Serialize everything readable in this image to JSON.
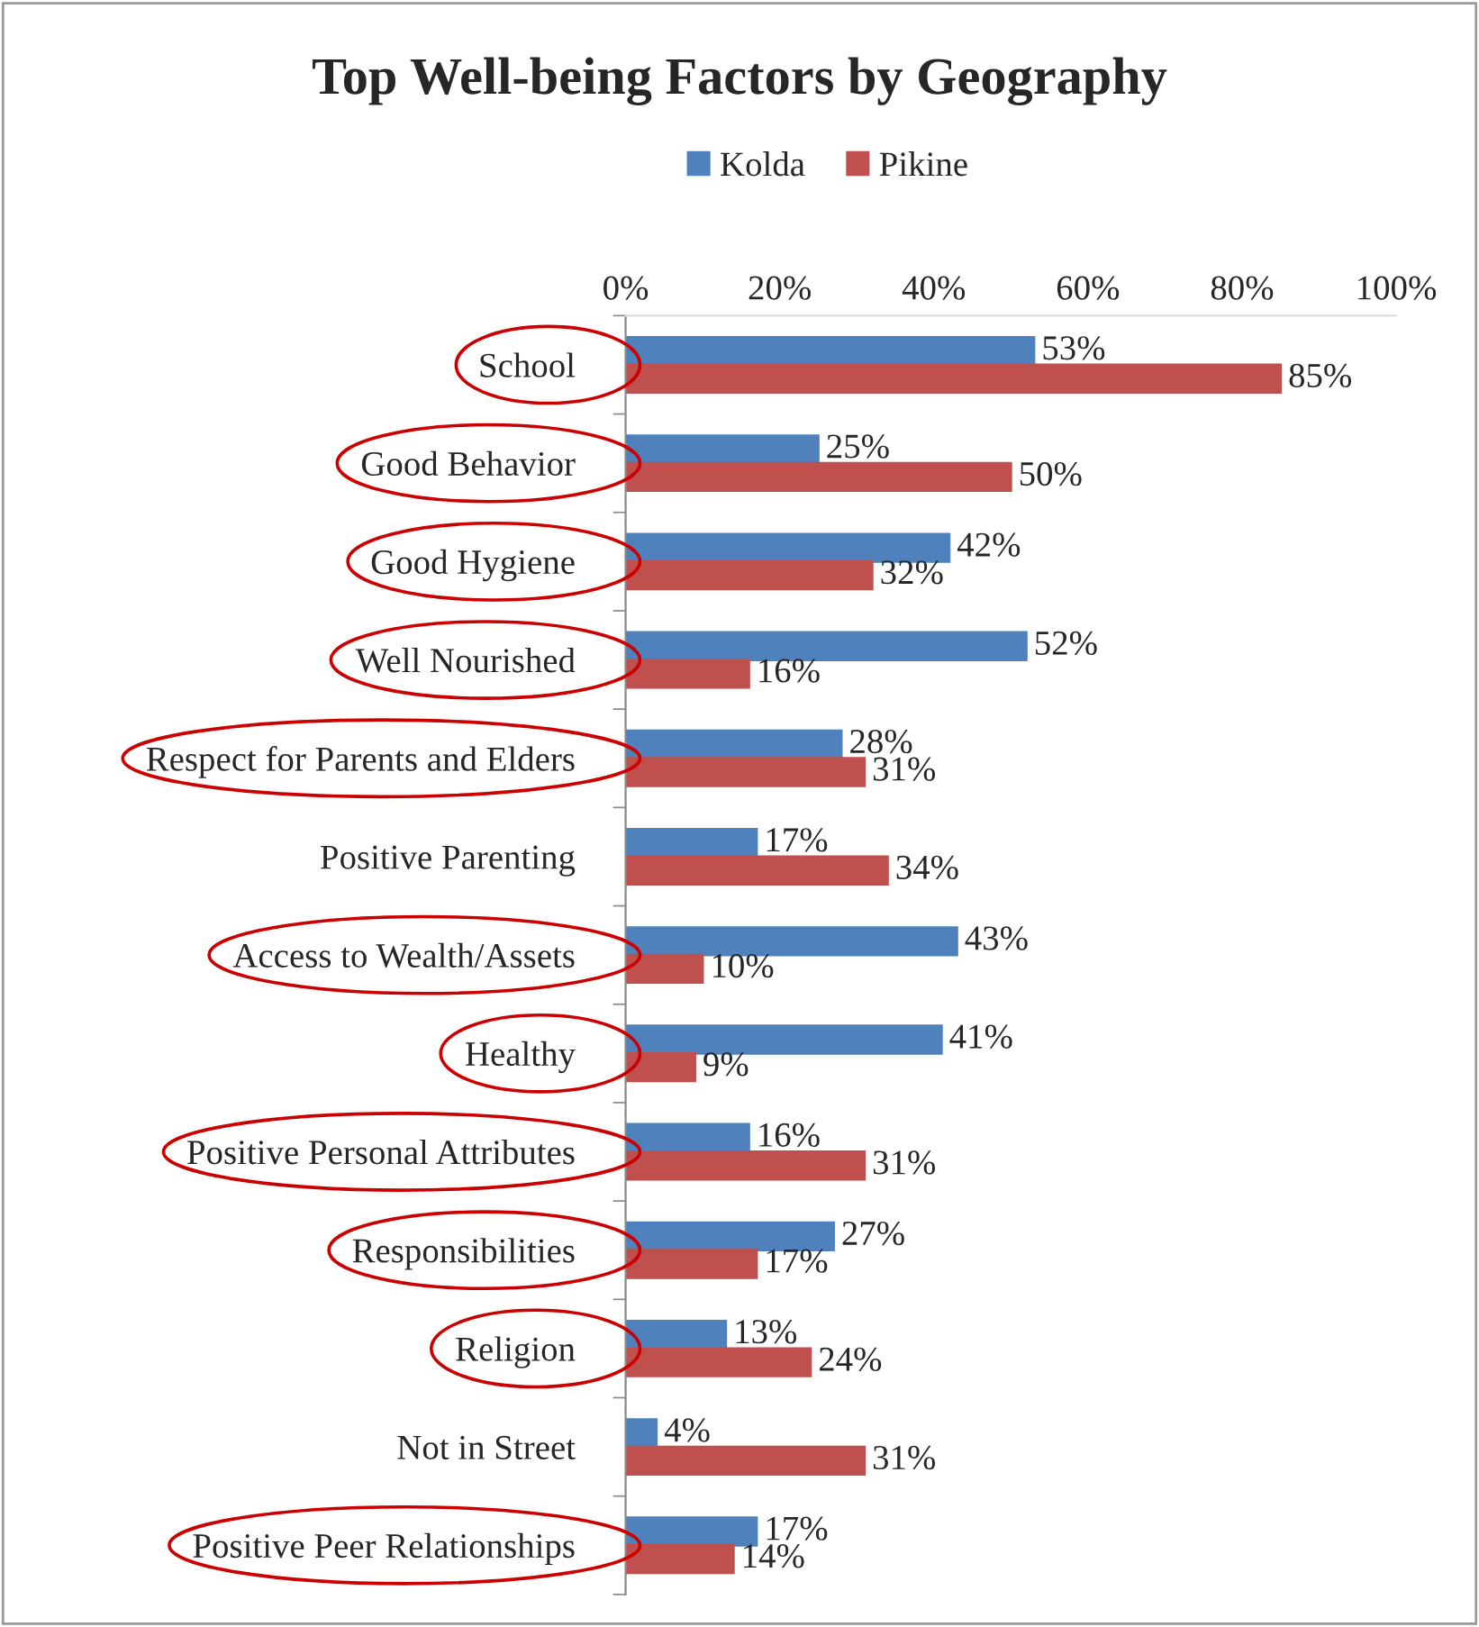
{
  "chart_data": {
    "type": "bar",
    "orientation": "horizontal",
    "title": "Top Well-being Factors by Geography",
    "categories": [
      "School",
      "Good Behavior",
      "Good Hygiene",
      "Well Nourished",
      "Respect for Parents and Elders",
      "Positive Parenting",
      "Access to Wealth/Assets",
      "Healthy",
      "Positive Personal Attributes",
      "Responsibilities",
      "Religion",
      "Not in Street",
      "Positive Peer Relationships"
    ],
    "series": [
      {
        "name": "Kolda",
        "color": "#4f81bd",
        "values": [
          53,
          25,
          42,
          52,
          28,
          17,
          43,
          41,
          16,
          27,
          13,
          4,
          17
        ],
        "value_labels": [
          "53%",
          "25%",
          "42%",
          "52%",
          "28%",
          "17%",
          "43%",
          "41%",
          "16%",
          "27%",
          "13%",
          "4%",
          "17%"
        ]
      },
      {
        "name": "Pikine",
        "color": "#c0504d",
        "values": [
          85,
          50,
          32,
          16,
          31,
          34,
          10,
          9,
          31,
          17,
          24,
          31,
          14
        ],
        "value_labels": [
          "85%",
          "50%",
          "32%",
          "16%",
          "31%",
          "34%",
          "10%",
          "9%",
          "31%",
          "17%",
          "24%",
          "31%",
          "14%"
        ]
      }
    ],
    "xlim": [
      0,
      100
    ],
    "xticks": [
      {
        "value": 0,
        "label": "0%"
      },
      {
        "value": 20,
        "label": "20%"
      },
      {
        "value": 40,
        "label": "40%"
      },
      {
        "value": 60,
        "label": "60%"
      },
      {
        "value": 80,
        "label": "80%"
      },
      {
        "value": 100,
        "label": "100%"
      }
    ],
    "legend": "top",
    "grid": false
  }
}
